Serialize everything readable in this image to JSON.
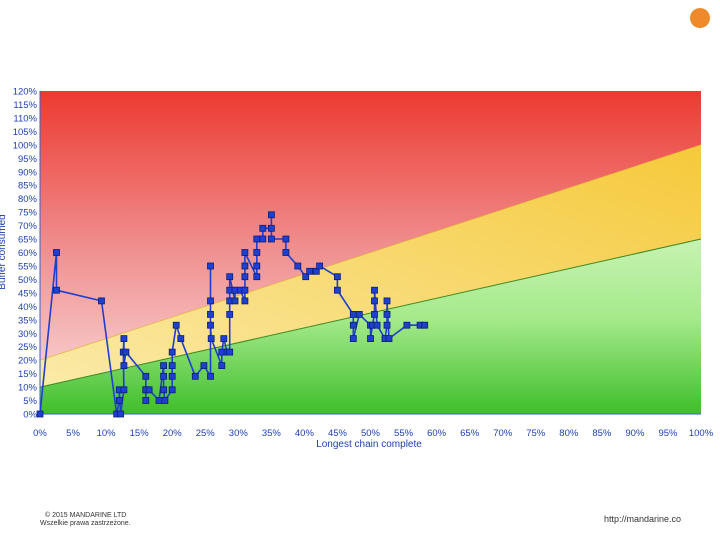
{
  "slide": {
    "copyright": "© 2015 MANDARINE LTD",
    "rights": "Wszelkie prawa zastrzeżone.",
    "url": "http://mandarine.co",
    "accent_color": "#ef8a2b"
  },
  "chart_data": {
    "type": "line",
    "title": "",
    "xlabel": "Longest chain complete",
    "ylabel": "Buffer consumed",
    "xlim": [
      0,
      100
    ],
    "ylim": [
      0,
      120
    ],
    "x_ticks": [
      "0%",
      "5%",
      "10%",
      "15%",
      "20%",
      "25%",
      "30%",
      "35%",
      "40%",
      "45%",
      "50%",
      "55%",
      "60%",
      "65%",
      "70%",
      "75%",
      "80%",
      "85%",
      "90%",
      "95%",
      "100%"
    ],
    "y_ticks": [
      "0%",
      "5%",
      "10%",
      "15%",
      "20%",
      "25%",
      "30%",
      "35%",
      "40%",
      "45%",
      "50%",
      "55%",
      "60%",
      "65%",
      "70%",
      "75%",
      "80%",
      "85%",
      "90%",
      "95%",
      "100%",
      "105%",
      "110%",
      "115%",
      "120%"
    ],
    "zones": [
      {
        "name": "green",
        "boundary_from": [
          0,
          10
        ],
        "boundary_to": [
          100,
          65
        ],
        "color": "#4cc23a"
      },
      {
        "name": "yellow",
        "boundary_from": [
          0,
          20
        ],
        "boundary_to": [
          100,
          100
        ],
        "color": "#f5cf3a"
      },
      {
        "name": "red",
        "color": "#ec3a30"
      }
    ],
    "series": [
      {
        "color": "#1e3fcf",
        "marker": "square",
        "points": [
          [
            0,
            0
          ],
          [
            2.5,
            60
          ],
          [
            2.5,
            46
          ],
          [
            9.3,
            42
          ],
          [
            11.6,
            0
          ],
          [
            12,
            5
          ],
          [
            12,
            9
          ],
          [
            12.2,
            0
          ],
          [
            12.7,
            9
          ],
          [
            12.6,
            23
          ],
          [
            12.7,
            28
          ],
          [
            12.7,
            18
          ],
          [
            13,
            23
          ],
          [
            16,
            14
          ],
          [
            16,
            9
          ],
          [
            16,
            5
          ],
          [
            16,
            9
          ],
          [
            16.5,
            9
          ],
          [
            18,
            5
          ],
          [
            18.7,
            18
          ],
          [
            18.7,
            14
          ],
          [
            18.7,
            9
          ],
          [
            18.9,
            5
          ],
          [
            20,
            9
          ],
          [
            20,
            14
          ],
          [
            20,
            18
          ],
          [
            20,
            23
          ],
          [
            20.6,
            33
          ],
          [
            21.3,
            28
          ],
          [
            23.5,
            14
          ],
          [
            24.8,
            18
          ],
          [
            25.8,
            14
          ],
          [
            25.8,
            55
          ],
          [
            25.8,
            42
          ],
          [
            25.8,
            37
          ],
          [
            25.8,
            33
          ],
          [
            25.9,
            28
          ],
          [
            27.5,
            18
          ],
          [
            27.5,
            23
          ],
          [
            27.8,
            28
          ],
          [
            28.3,
            23
          ],
          [
            28.7,
            23
          ],
          [
            28.7,
            37
          ],
          [
            28.7,
            42
          ],
          [
            28.7,
            46
          ],
          [
            28.7,
            51
          ],
          [
            29.5,
            42
          ],
          [
            29.5,
            46
          ],
          [
            30.3,
            46
          ],
          [
            31,
            42
          ],
          [
            31,
            46
          ],
          [
            31,
            51
          ],
          [
            31,
            55
          ],
          [
            31,
            60
          ],
          [
            32.8,
            51
          ],
          [
            32.8,
            55
          ],
          [
            32.8,
            60
          ],
          [
            32.8,
            65
          ],
          [
            33.7,
            65
          ],
          [
            33.7,
            69
          ],
          [
            35,
            69
          ],
          [
            35,
            74
          ],
          [
            35,
            65
          ],
          [
            37.2,
            65
          ],
          [
            37.2,
            60
          ],
          [
            39,
            55
          ],
          [
            40.2,
            51
          ],
          [
            40.8,
            53
          ],
          [
            41.8,
            53
          ],
          [
            42.3,
            55
          ],
          [
            45,
            51
          ],
          [
            45,
            46
          ],
          [
            47.4,
            37
          ],
          [
            47.4,
            33
          ],
          [
            47.4,
            28
          ],
          [
            48.3,
            37
          ],
          [
            50,
            33
          ],
          [
            50,
            28
          ],
          [
            50.3,
            33
          ],
          [
            50.6,
            37
          ],
          [
            50.6,
            42
          ],
          [
            50.6,
            46
          ],
          [
            51,
            33
          ],
          [
            52.2,
            28
          ],
          [
            52.5,
            33
          ],
          [
            52.5,
            37
          ],
          [
            52.5,
            42
          ],
          [
            52.8,
            28
          ],
          [
            55.5,
            33
          ],
          [
            57.5,
            33
          ],
          [
            58.2,
            33
          ]
        ]
      }
    ]
  }
}
